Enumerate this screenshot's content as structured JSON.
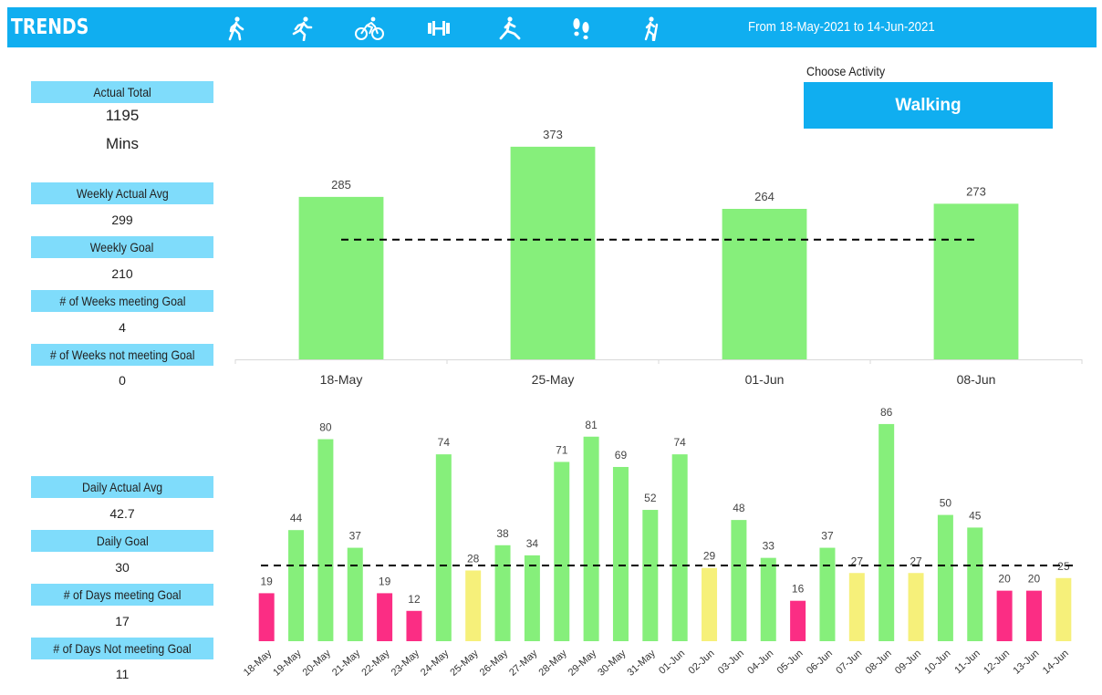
{
  "header": {
    "title": "TRENDS",
    "date_range": "From 18-May-2021 to 14-Jun-2021",
    "activity_icons": [
      "walking-icon",
      "running-icon",
      "cycling-icon",
      "weights-icon",
      "yoga-icon",
      "footsteps-icon",
      "hiking-icon"
    ]
  },
  "activity": {
    "label": "Choose Activity",
    "selected": "Walking"
  },
  "weekly_kpis": {
    "actual_total_label": "Actual Total",
    "actual_total_value": "1195",
    "actual_total_unit": "Mins",
    "avg_label": "Weekly Actual Avg",
    "avg_value": "299",
    "goal_label": "Weekly Goal",
    "goal_value": "210",
    "meeting_label": "# of Weeks meeting Goal",
    "meeting_value": "4",
    "not_meeting_label": "# of Weeks not meeting Goal",
    "not_meeting_value": "0"
  },
  "daily_kpis": {
    "avg_label": "Daily Actual Avg",
    "avg_value": "42.7",
    "goal_label": "Daily Goal",
    "goal_value": "30",
    "meeting_label": "# of Days meeting Goal",
    "meeting_value": "17",
    "not_meeting_label": "# of Days Not meeting Goal",
    "not_meeting_value": "11"
  },
  "colors": {
    "header": "#10aef0",
    "kpi_label": "#7fdcfb",
    "met": "#86ef7b",
    "near": "#f6f07a",
    "missed": "#fb2d84"
  },
  "chart_data": [
    {
      "type": "bar",
      "categories": [
        "18-May",
        "25-May",
        "01-Jun",
        "08-Jun"
      ],
      "values": [
        285,
        373,
        264,
        273
      ],
      "goal": 210,
      "ylim": [
        0,
        400
      ]
    },
    {
      "type": "bar",
      "categories": [
        "18-May",
        "19-May",
        "20-May",
        "21-May",
        "22-May",
        "23-May",
        "24-May",
        "25-May",
        "26-May",
        "27-May",
        "28-May",
        "29-May",
        "30-May",
        "31-May",
        "01-Jun",
        "02-Jun",
        "03-Jun",
        "04-Jun",
        "05-Jun",
        "06-Jun",
        "07-Jun",
        "08-Jun",
        "09-Jun",
        "10-Jun",
        "11-Jun",
        "12-Jun",
        "13-Jun",
        "14-Jun"
      ],
      "values": [
        19,
        44,
        80,
        37,
        19,
        12,
        74,
        28,
        38,
        34,
        71,
        81,
        69,
        52,
        74,
        29,
        48,
        33,
        16,
        37,
        27,
        86,
        27,
        50,
        45,
        20,
        20,
        25
      ],
      "status": [
        "missed",
        "met",
        "met",
        "met",
        "missed",
        "missed",
        "met",
        "near",
        "met",
        "met",
        "met",
        "met",
        "met",
        "met",
        "met",
        "near",
        "met",
        "met",
        "missed",
        "met",
        "near",
        "met",
        "near",
        "met",
        "met",
        "missed",
        "missed",
        "near"
      ],
      "goal": 30,
      "ylim": [
        0,
        95
      ]
    }
  ]
}
